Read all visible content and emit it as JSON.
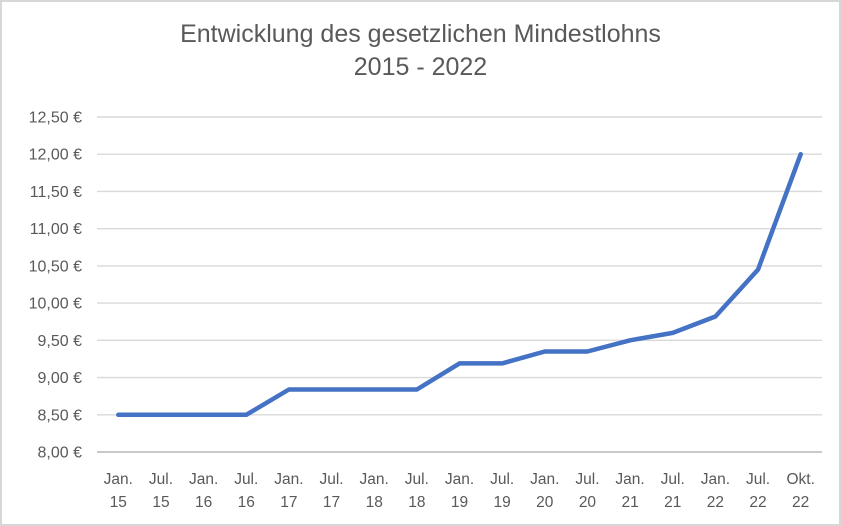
{
  "title": {
    "line1": "Entwicklung des gesetzlichen Mindestlohns",
    "line2": "2015 - 2022"
  },
  "chart_data": {
    "type": "line",
    "title": "Entwicklung des gesetzlichen Mindestlohns 2015 - 2022",
    "categories": [
      "Jan. 15",
      "Jul. 15",
      "Jan. 16",
      "Jul. 16",
      "Jan. 17",
      "Jul. 17",
      "Jan. 18",
      "Jul. 18",
      "Jan. 19",
      "Jul. 19",
      "Jan. 20",
      "Jul. 20",
      "Jan. 21",
      "Jul. 21",
      "Jan. 22",
      "Jul. 22",
      "Okt. 22"
    ],
    "values": [
      8.5,
      8.5,
      8.5,
      8.5,
      8.84,
      8.84,
      8.84,
      8.84,
      9.19,
      9.19,
      9.35,
      9.35,
      9.5,
      9.6,
      9.82,
      10.45,
      12.0
    ],
    "xlabel": "",
    "ylabel": "",
    "ylim": [
      8.0,
      12.5
    ],
    "ytick_step": 0.5,
    "ytick_labels": [
      "8,00 €",
      "8,50 €",
      "9,00 €",
      "9,50 €",
      "10,00 €",
      "10,50 €",
      "11,00 €",
      "11,50 €",
      "12,00 €",
      "12,50 €"
    ],
    "grid": true,
    "legend": false,
    "markers": false,
    "colors": {
      "line": "#4472C4",
      "text": "#595959",
      "grid": "#D9D9D9",
      "axis": "#C9C9C9",
      "background": "#FFFFFF",
      "frame_border": "#D7D7D7"
    }
  }
}
